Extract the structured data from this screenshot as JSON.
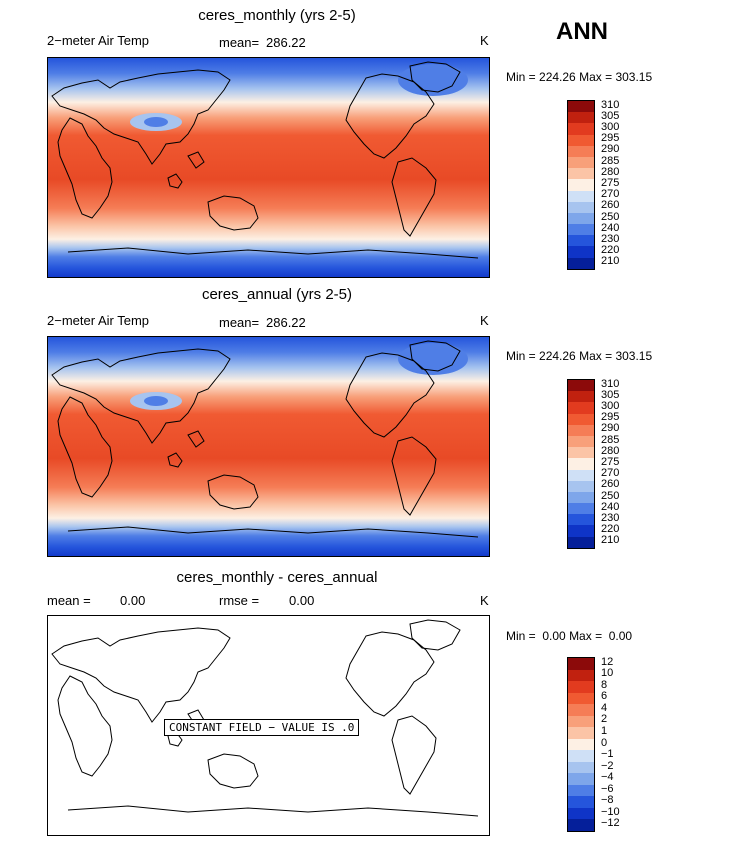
{
  "season_label": "ANN",
  "panels": [
    {
      "title": "ceres_monthly (yrs 2-5)",
      "left_label": "2−meter Air Temp",
      "mean_label": "mean=",
      "mean_value": "286.22",
      "units": "K",
      "min_label": "Min =",
      "min_value": "224.26",
      "max_label": "Max =",
      "max_value": "303.15",
      "levels": [
        "310",
        "305",
        "300",
        "295",
        "290",
        "285",
        "280",
        "275",
        "270",
        "260",
        "250",
        "240",
        "230",
        "220",
        "210"
      ],
      "field": "temperature"
    },
    {
      "title": "ceres_annual (yrs 2-5)",
      "left_label": "2−meter Air Temp",
      "mean_label": "mean=",
      "mean_value": "286.22",
      "units": "K",
      "min_label": "Min =",
      "min_value": "224.26",
      "max_label": "Max =",
      "max_value": "303.15",
      "levels": [
        "310",
        "305",
        "300",
        "295",
        "290",
        "285",
        "280",
        "275",
        "270",
        "260",
        "250",
        "240",
        "230",
        "220",
        "210"
      ],
      "field": "temperature"
    },
    {
      "title": "ceres_monthly - ceres_annual",
      "left_label": "mean =",
      "mean_label": "0.00",
      "rmse_label": "rmse =",
      "rmse_value": "0.00",
      "units": "K",
      "min_label": "Min =",
      "min_value": "0.00",
      "max_label": "Max =",
      "max_value": "0.00",
      "levels": [
        "12",
        "10",
        "8",
        "6",
        "4",
        "2",
        "1",
        "0",
        "−1",
        "−2",
        "−4",
        "−6",
        "−8",
        "−10",
        "−12"
      ],
      "field": "blank",
      "constant_note": "CONSTANT FIELD − VALUE IS .0"
    }
  ],
  "colors": {
    "scale": [
      "#8c0a0a",
      "#c1210f",
      "#e23b1f",
      "#f05a32",
      "#f57d56",
      "#f8a07a",
      "#fbc4a6",
      "#fdf0e4",
      "#cfe0f6",
      "#a7c4ef",
      "#7ea6ea",
      "#4f7ee6",
      "#2555dc",
      "#0f34c7",
      "#051f9a"
    ]
  }
}
